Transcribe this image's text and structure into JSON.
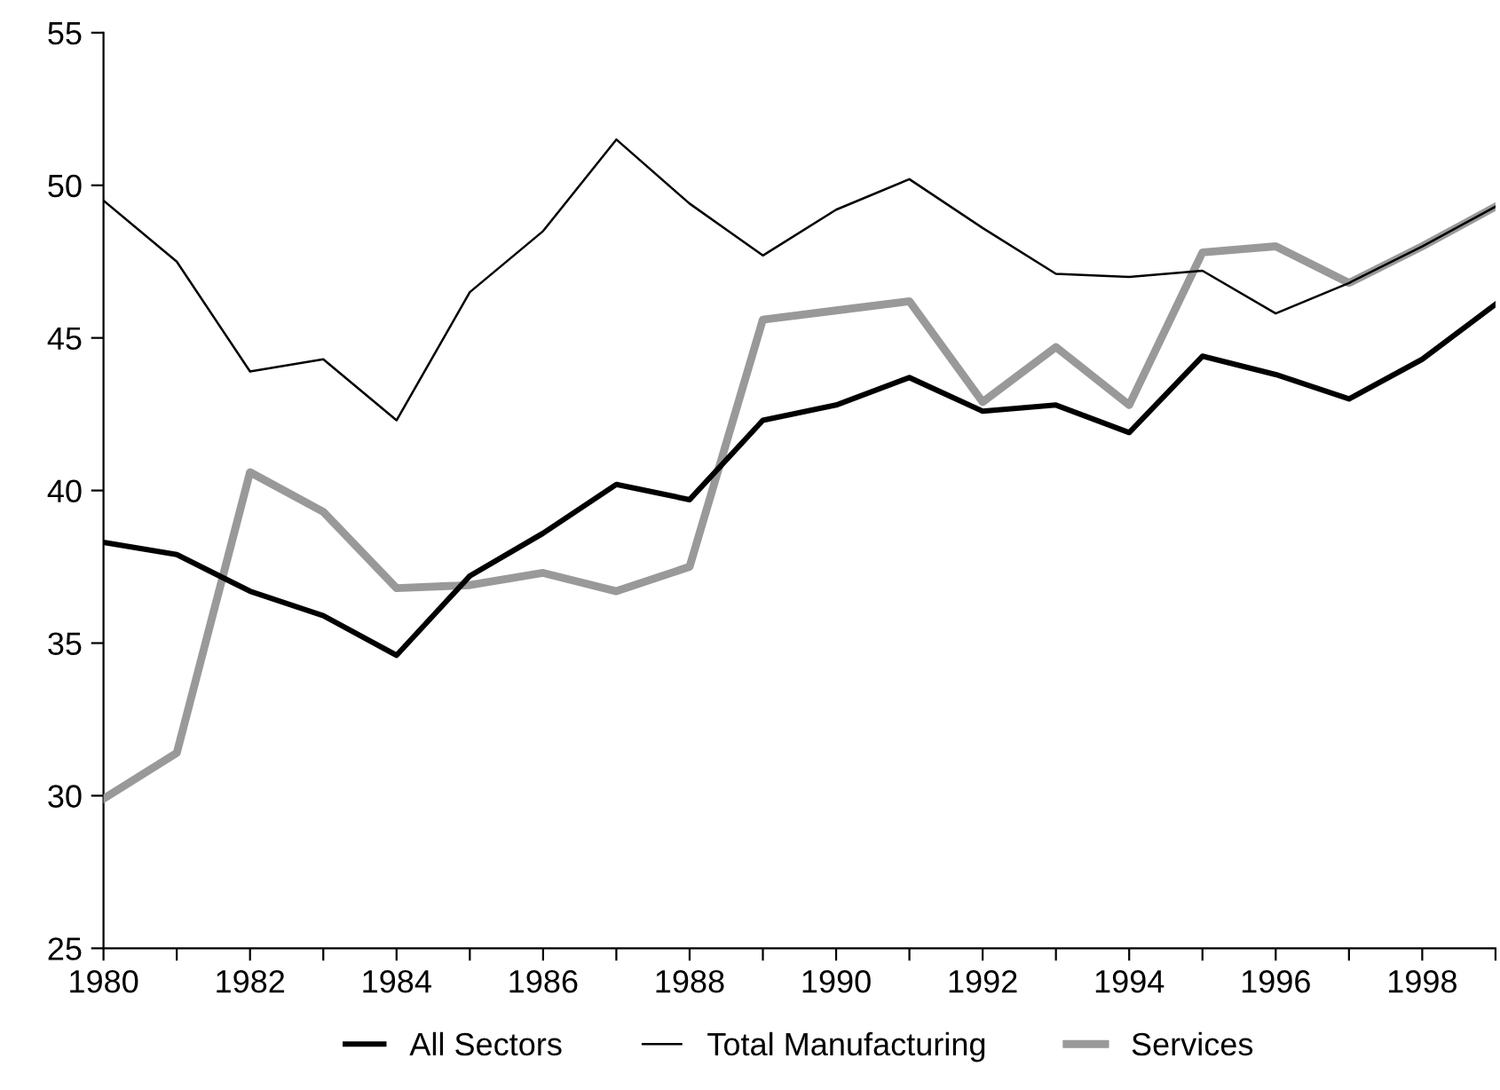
{
  "chart_data": {
    "type": "line",
    "x": [
      1980,
      1981,
      1982,
      1983,
      1984,
      1985,
      1986,
      1987,
      1988,
      1989,
      1990,
      1991,
      1992,
      1993,
      1994,
      1995,
      1996,
      1997,
      1998,
      1999
    ],
    "series": [
      {
        "name": "All Sectors",
        "color": "#000000",
        "values": [
          38.3,
          37.9,
          36.7,
          35.9,
          34.6,
          37.2,
          38.6,
          40.2,
          39.7,
          42.3,
          42.8,
          43.7,
          42.6,
          42.8,
          41.9,
          44.4,
          43.8,
          43.0,
          44.3,
          46.1
        ]
      },
      {
        "name": "Total Manufacturing",
        "color": "#000000",
        "values": [
          49.5,
          47.5,
          43.9,
          44.3,
          42.3,
          46.5,
          48.5,
          51.5,
          49.4,
          47.7,
          49.2,
          50.2,
          48.6,
          47.1,
          47.0,
          47.2,
          45.8,
          46.8,
          48.0,
          49.3
        ]
      },
      {
        "name": "Services",
        "color": "#999999",
        "values": [
          29.9,
          31.4,
          40.6,
          39.3,
          36.8,
          36.9,
          37.3,
          36.7,
          37.5,
          45.6,
          45.9,
          46.2,
          42.9,
          44.7,
          42.8,
          47.8,
          48.0,
          46.8,
          48.0,
          49.3
        ]
      }
    ],
    "xlim": [
      1980,
      1999
    ],
    "xticks": [
      1980,
      {
        "value": 1981,
        "label": null
      },
      1982,
      {
        "value": 1983,
        "label": null
      },
      1984,
      {
        "value": 1985,
        "label": null
      },
      1986,
      {
        "value": 1987,
        "label": null
      },
      1988,
      {
        "value": 1989,
        "label": null
      },
      1990,
      {
        "value": 1991,
        "label": null
      },
      1992,
      {
        "value": 1993,
        "label": null
      },
      1994,
      {
        "value": 1995,
        "label": null
      },
      1996,
      {
        "value": 1997,
        "label": null
      },
      1998,
      {
        "value": 1999,
        "label": null
      }
    ],
    "ylim": [
      25,
      55
    ],
    "yticks": [
      25,
      30,
      35,
      40,
      45,
      50,
      55
    ],
    "grid": false,
    "legend": "bottom",
    "marker": "none",
    "line_style": "solid"
  }
}
